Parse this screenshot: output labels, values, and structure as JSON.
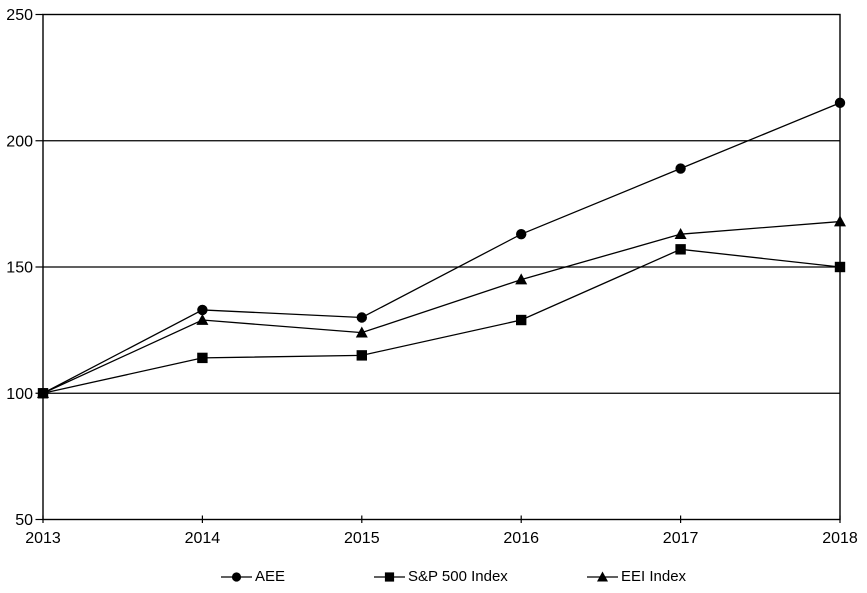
{
  "chart_data": {
    "type": "line",
    "x": [
      2013,
      2014,
      2015,
      2016,
      2017,
      2018
    ],
    "xtick_labels": [
      "2013",
      "2014",
      "2015",
      "2016",
      "2017",
      "2018"
    ],
    "yticks": [
      50,
      100,
      150,
      200,
      250
    ],
    "ylim": [
      50,
      250
    ],
    "series": [
      {
        "name": "AEE",
        "marker": "circle",
        "values": [
          100,
          133,
          130,
          163,
          189,
          215
        ]
      },
      {
        "name": "S&P 500 Index",
        "marker": "square",
        "values": [
          100,
          114,
          115,
          129,
          157,
          150
        ]
      },
      {
        "name": "EEI Index",
        "marker": "triangle",
        "values": [
          100,
          129,
          124,
          145,
          163,
          168
        ]
      }
    ],
    "title": "",
    "xlabel": "",
    "ylabel": "",
    "grid": "horizontal-on",
    "legend_position": "bottom",
    "line_color": "#000000",
    "marker_color": "#000000",
    "axis_color": "#000000",
    "background_color": "#ffffff"
  }
}
